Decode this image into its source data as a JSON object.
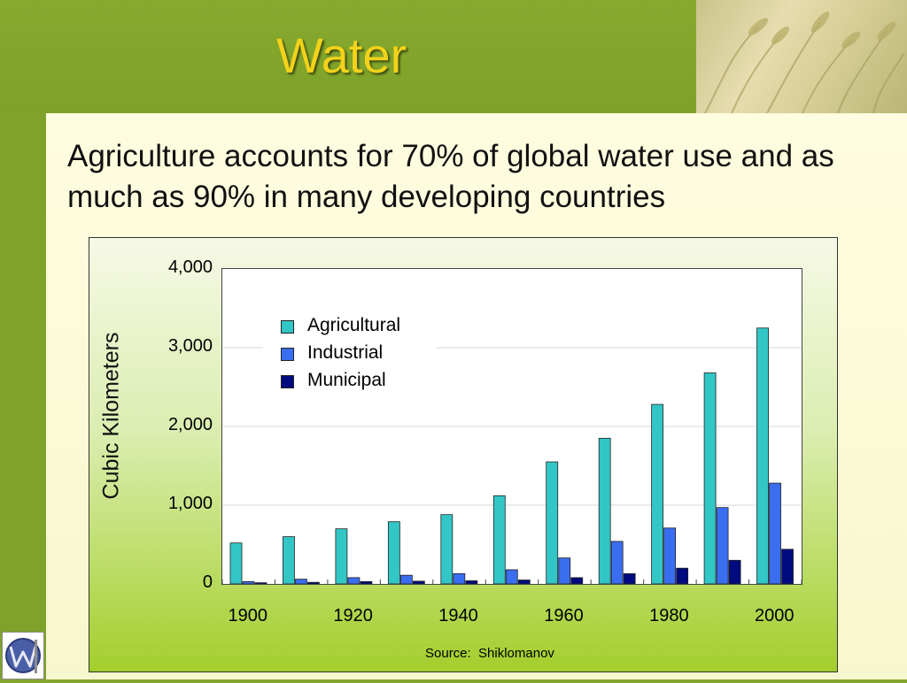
{
  "slide": {
    "title": "Water",
    "subtitle": "Agriculture accounts for 70% of global water use and as much as 90% in many developing countries",
    "source": "Source:  Shiklomanov",
    "colors": {
      "background": "#84a62c",
      "title": "#f2d21a",
      "content": "#fffde0"
    }
  },
  "chart_data": {
    "type": "bar",
    "ylabel": "Cubic Kilometers",
    "xlabel": "",
    "ylim": [
      0,
      4000
    ],
    "yticks": [
      "0",
      "1,000",
      "2,000",
      "3,000",
      "4,000"
    ],
    "xtick_labels": [
      "1900",
      "1920",
      "1940",
      "1960",
      "1980",
      "2000"
    ],
    "categories": [
      "1900",
      "1910",
      "1920",
      "1930",
      "1940",
      "1950",
      "1960",
      "1970",
      "1980",
      "1990",
      "2000"
    ],
    "legend_position": "top-left",
    "grid": true,
    "series": [
      {
        "name": "Agricultural",
        "color": "#33c6c6",
        "values": [
          520,
          600,
          700,
          790,
          880,
          1120,
          1550,
          1850,
          2280,
          2680,
          3250
        ]
      },
      {
        "name": "Industrial",
        "color": "#3a6ef0",
        "values": [
          30,
          60,
          80,
          110,
          130,
          180,
          330,
          540,
          710,
          970,
          1280
        ]
      },
      {
        "name": "Municipal",
        "color": "#000b80",
        "values": [
          15,
          20,
          30,
          35,
          40,
          50,
          80,
          130,
          200,
          300,
          440
        ]
      }
    ]
  }
}
